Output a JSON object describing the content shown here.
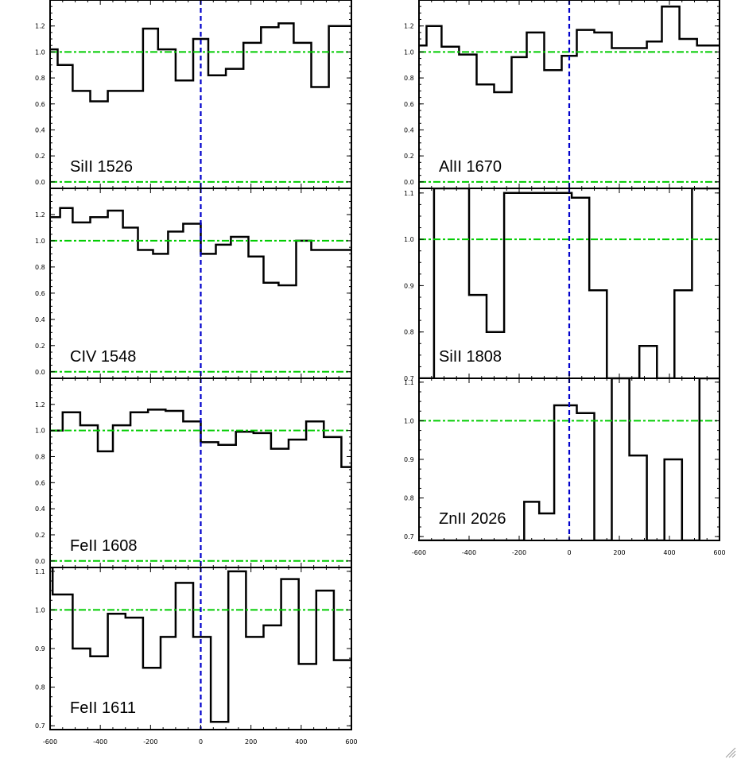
{
  "chart_data": [
    {
      "type": "line",
      "label": "SiII 1526",
      "xlim": [
        -600,
        600
      ],
      "ylim": [
        -0.05,
        1.4
      ],
      "yticks": [
        0.0,
        0.2,
        0.4,
        0.6,
        0.8,
        1.0,
        1.2
      ],
      "ytick_labels": [
        "0.0",
        "0.2",
        "0.4",
        "0.6",
        "0.8",
        "1.0",
        "1.2"
      ],
      "xticks": [],
      "xtick_labels": [],
      "hlines": [
        1.0,
        0.0
      ],
      "vline": 0,
      "step_edges": [
        -600,
        -540,
        -470,
        -400,
        -370,
        -330,
        -230,
        -230,
        -230,
        -230,
        -230,
        -230,
        -230
      ],
      "x": [
        -600,
        -570,
        -510,
        -440,
        -370,
        -300,
        -230,
        -170,
        -100,
        -30,
        30,
        100,
        170,
        240,
        310,
        370,
        440,
        510,
        570
      ],
      "y": [
        1.02,
        0.9,
        0.7,
        0.62,
        0.7,
        0.7,
        1.18,
        1.02,
        0.78,
        1.1,
        0.82,
        0.87,
        1.07,
        1.19,
        1.22,
        1.07,
        0.73,
        1.2,
        1.2
      ]
    },
    {
      "type": "line",
      "label": "CIV 1548",
      "xlim": [
        -600,
        600
      ],
      "ylim": [
        -0.05,
        1.4
      ],
      "yticks": [
        0.0,
        0.2,
        0.4,
        0.6,
        0.8,
        1.0,
        1.2
      ],
      "ytick_labels": [
        "0.0",
        "0.2",
        "0.4",
        "0.6",
        "0.8",
        "1.0",
        "1.2"
      ],
      "xticks": [],
      "xtick_labels": [],
      "hlines": [
        1.0,
        0.0
      ],
      "vline": 0,
      "x": [
        -600,
        -560,
        -510,
        -440,
        -370,
        -310,
        -250,
        -190,
        -130,
        -70,
        0,
        60,
        120,
        190,
        250,
        310,
        380,
        440,
        510,
        570
      ],
      "y": [
        1.18,
        1.25,
        1.14,
        1.18,
        1.23,
        1.1,
        0.93,
        0.9,
        1.07,
        1.13,
        0.9,
        0.97,
        1.03,
        0.88,
        0.68,
        0.66,
        1.0,
        0.93,
        0.93,
        0.93
      ]
    },
    {
      "type": "line",
      "label": "FeII 1608",
      "xlim": [
        -600,
        600
      ],
      "ylim": [
        -0.05,
        1.4
      ],
      "yticks": [
        0.0,
        0.2,
        0.4,
        0.6,
        0.8,
        1.0,
        1.2
      ],
      "ytick_labels": [
        "0.0",
        "0.2",
        "0.4",
        "0.6",
        "0.8",
        "1.0",
        "1.2"
      ],
      "xticks": [],
      "xtick_labels": [],
      "hlines": [
        1.0,
        0.0
      ],
      "vline": 0,
      "x": [
        -600,
        -550,
        -480,
        -410,
        -350,
        -280,
        -210,
        -140,
        -70,
        0,
        70,
        140,
        210,
        280,
        350,
        420,
        490,
        560
      ],
      "y": [
        1.0,
        1.14,
        1.04,
        0.84,
        1.04,
        1.14,
        1.16,
        1.15,
        1.07,
        0.91,
        0.89,
        0.99,
        0.98,
        0.86,
        0.93,
        1.07,
        0.95,
        0.72
      ]
    },
    {
      "type": "line",
      "label": "FeII 1611",
      "xlim": [
        -600,
        600
      ],
      "ylim": [
        0.69,
        1.11
      ],
      "yticks": [
        0.7,
        0.8,
        0.9,
        1.0,
        1.1
      ],
      "ytick_labels": [
        "0.7",
        "0.8",
        "0.9",
        "1.0",
        "1.1"
      ],
      "xticks": [
        -600,
        -400,
        -200,
        0,
        200,
        400,
        600
      ],
      "xtick_labels": [
        "-600",
        "-400",
        "-200",
        "0",
        "200",
        "400",
        "600"
      ],
      "hlines": [
        1.0
      ],
      "vline": 0,
      "x": [
        -600,
        -590,
        -510,
        -440,
        -370,
        -300,
        -230,
        -160,
        -100,
        -30,
        40,
        110,
        180,
        250,
        320,
        390,
        460,
        530,
        570
      ],
      "y": [
        1.11,
        1.04,
        0.9,
        0.88,
        0.99,
        0.98,
        0.85,
        0.93,
        1.07,
        0.93,
        0.71,
        1.1,
        0.93,
        0.96,
        1.08,
        0.86,
        1.05,
        0.87,
        0.87
      ]
    },
    {
      "type": "line",
      "label": "AlII 1670",
      "xlim": [
        -600,
        600
      ],
      "ylim": [
        -0.05,
        1.4
      ],
      "yticks": [
        0.0,
        0.2,
        0.4,
        0.6,
        0.8,
        1.0,
        1.2
      ],
      "ytick_labels": [
        "0.0",
        "0.2",
        "0.4",
        "0.6",
        "0.8",
        "1.0",
        "1.2"
      ],
      "xticks": [],
      "xtick_labels": [],
      "hlines": [
        1.0,
        0.0
      ],
      "vline": 0,
      "x": [
        -600,
        -570,
        -510,
        -440,
        -370,
        -300,
        -230,
        -170,
        -100,
        -30,
        30,
        100,
        170,
        240,
        310,
        370,
        440,
        510,
        570
      ],
      "y": [
        1.05,
        1.2,
        1.04,
        0.98,
        0.75,
        0.69,
        0.96,
        1.15,
        0.86,
        0.97,
        1.17,
        1.15,
        1.03,
        1.03,
        1.08,
        1.35,
        1.1,
        1.05,
        1.05
      ]
    },
    {
      "type": "line",
      "label": "SiII 1808",
      "xlim": [
        -600,
        600
      ],
      "ylim": [
        0.7,
        1.11
      ],
      "yticks": [
        0.7,
        0.8,
        0.9,
        1.0,
        1.1
      ],
      "ytick_labels": [
        "0.7",
        "0.8",
        "0.9",
        "1.0",
        "1.1"
      ],
      "xticks": [],
      "xtick_labels": [],
      "hlines": [
        1.0
      ],
      "vline": 0,
      "x": [
        -600,
        -540,
        -400,
        -330,
        -260,
        -60,
        10,
        80,
        150,
        280,
        350,
        420,
        490,
        560
      ],
      "y": [
        0.7,
        1.11,
        0.88,
        0.8,
        1.1,
        1.1,
        1.09,
        0.89,
        0.7,
        0.77,
        0.7,
        0.89,
        1.11,
        1.11
      ]
    },
    {
      "type": "line",
      "label": "ZnII 2026",
      "xlim": [
        -600,
        600
      ],
      "ylim": [
        0.69,
        1.11
      ],
      "yticks": [
        0.7,
        0.8,
        0.9,
        1.0,
        1.1
      ],
      "ytick_labels": [
        "0.7",
        "0.8",
        "0.9",
        "1.0",
        "1.1"
      ],
      "xticks": [
        -600,
        -400,
        -200,
        0,
        200,
        400,
        600
      ],
      "xtick_labels": [
        "-600",
        "-400",
        "-200",
        "0",
        "200",
        "400",
        "600"
      ],
      "hlines": [
        1.0
      ],
      "vline": 0,
      "x": [
        -600,
        -180,
        -120,
        -60,
        -40,
        30,
        100,
        170,
        240,
        310,
        380,
        450,
        520,
        580
      ],
      "y": [
        0.69,
        0.79,
        0.76,
        1.04,
        1.04,
        1.02,
        0.69,
        1.11,
        0.91,
        0.69,
        0.9,
        0.69,
        1.11,
        1.11
      ]
    }
  ],
  "colors": {
    "spectrum": "#000000",
    "reference_lines": "#00cc00",
    "zero_velocity": "#0000cc"
  }
}
